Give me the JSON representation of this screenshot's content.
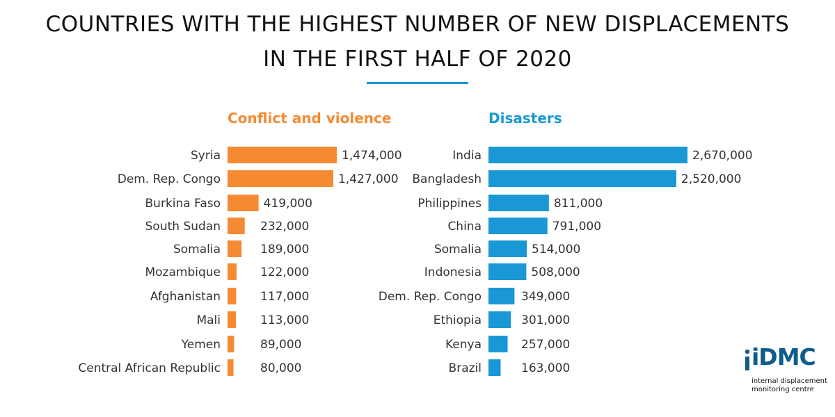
{
  "title_line1": "COUNTRIES WITH THE HIGHEST NUMBER OF NEW DISPLACEMENTS",
  "title_line2": "IN THE FIRST HALF OF 2020",
  "colors": {
    "conflict": "#f58a33",
    "disasters": "#1a98d5",
    "rule": "#1a98d5",
    "text": "#333333",
    "logo": "#0f5c8c"
  },
  "logo": {
    "wordmark": "iDMC",
    "tagline_line1": "internal displacement",
    "tagline_line2": "monitoring centre"
  },
  "chart_data": [
    {
      "type": "bar",
      "orientation": "horizontal",
      "title": "Conflict and violence",
      "categories": [
        "Syria",
        "Dem. Rep. Congo",
        "Burkina Faso",
        "South Sudan",
        "Somalia",
        "Mozambique",
        "Afghanistan",
        "Mali",
        "Yemen",
        "Central African Republic"
      ],
      "values": [
        1474000,
        1427000,
        419000,
        232000,
        189000,
        122000,
        117000,
        113000,
        89000,
        80000
      ],
      "labels": [
        "1,474,000",
        "1,427,000",
        "419,000",
        "232,000",
        "189,000",
        "122,000",
        "117,000",
        "113,000",
        "89,000",
        "80,000"
      ],
      "color": "#f58a33"
    },
    {
      "type": "bar",
      "orientation": "horizontal",
      "title": "Disasters",
      "categories": [
        "India",
        "Bangladesh",
        "Philippines",
        "China",
        "Somalia",
        "Indonesia",
        "Dem. Rep. Congo",
        "Ethiopia",
        "Kenya",
        "Brazil"
      ],
      "values": [
        2670000,
        2520000,
        811000,
        791000,
        514000,
        508000,
        349000,
        301000,
        257000,
        163000
      ],
      "labels": [
        "2,670,000",
        "2,520,000",
        "811,000",
        "791,000",
        "514,000",
        "508,000",
        "349,000",
        "301,000",
        "257,000",
        "163,000"
      ],
      "color": "#1a98d5"
    }
  ]
}
